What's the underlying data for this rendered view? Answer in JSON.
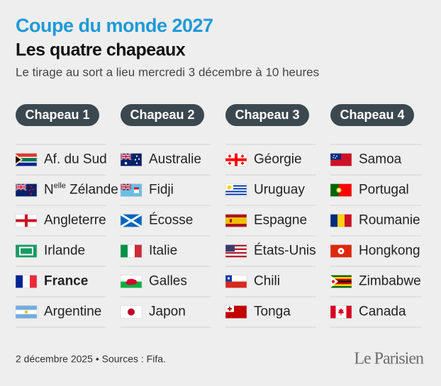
{
  "header": {
    "title": "Coupe du monde 2027",
    "subtitle": "Les quatre chapeaux",
    "description": "Le tirage au sort a lieu mercredi 3 décembre à 10 heures"
  },
  "columns": [
    {
      "name": "Chapeau 1",
      "teams": [
        {
          "name": "Af. du Sud"
        },
        {
          "name": {
            "prefix": "N",
            "sup": "elle",
            "rest": " Zélande"
          }
        },
        {
          "name": "Angleterre"
        },
        {
          "name": "Irlande"
        },
        {
          "name": "France",
          "bold": true
        },
        {
          "name": "Argentine"
        }
      ]
    },
    {
      "name": "Chapeau 2",
      "teams": [
        {
          "name": "Australie"
        },
        {
          "name": "Fidji"
        },
        {
          "name": "Écosse"
        },
        {
          "name": "Italie"
        },
        {
          "name": "Galles"
        },
        {
          "name": "Japon"
        }
      ]
    },
    {
      "name": "Chapeau 3",
      "teams": [
        {
          "name": "Géorgie"
        },
        {
          "name": "Uruguay"
        },
        {
          "name": "Espagne"
        },
        {
          "name": "États-Unis"
        },
        {
          "name": "Chili"
        },
        {
          "name": "Tonga"
        }
      ]
    },
    {
      "name": "Chapeau 4",
      "teams": [
        {
          "name": "Samoa"
        },
        {
          "name": "Portugal"
        },
        {
          "name": "Roumanie"
        },
        {
          "name": "Hongkong"
        },
        {
          "name": "Zimbabwe"
        },
        {
          "name": "Canada"
        }
      ]
    }
  ],
  "footer": {
    "note": "2 décembre 2025 • Sources : Fifa.",
    "logo": "Le Parisien"
  }
}
